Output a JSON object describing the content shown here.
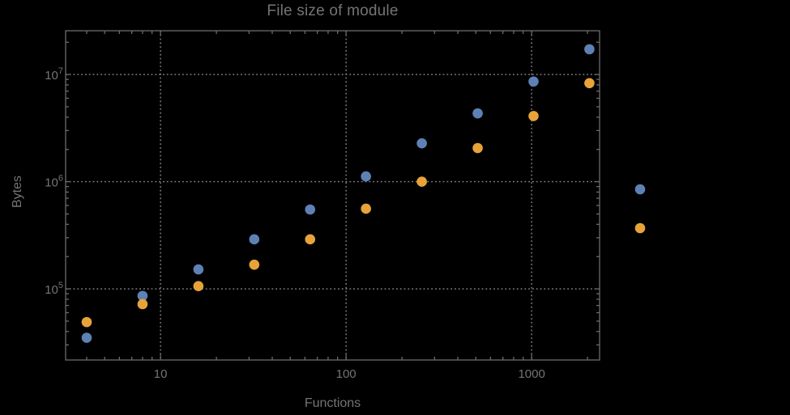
{
  "chart": {
    "title": "File size of module",
    "xlabel": "Functions",
    "ylabel": "Bytes"
  },
  "colors": {
    "background": "#000000",
    "text": "#747474",
    "frame": "#6b6b6b",
    "grid": "#8a8a8a",
    "series1": "#5e81b5",
    "series2": "#e7a33a"
  },
  "chart_data": {
    "type": "scatter",
    "title": "File size of module",
    "xlabel": "Functions",
    "ylabel": "Bytes",
    "x_scale": "log",
    "y_scale": "log",
    "grid": "dotted lines at decades",
    "xlim": [
      3.08,
      2324
    ],
    "ylim": [
      21700,
      25600000
    ],
    "x": [
      4,
      8,
      16,
      32,
      64,
      128,
      256,
      512,
      1024,
      2048
    ],
    "series": [
      {
        "name": "series-1-blue",
        "color": "#5e81b5",
        "values": [
          35000,
          86000,
          152000,
          290000,
          550000,
          1120000,
          2280000,
          4340000,
          8600000,
          17200000
        ]
      },
      {
        "name": "series-2-orange",
        "color": "#e7a33a",
        "values": [
          49000,
          72000,
          106000,
          168000,
          290000,
          560000,
          1000000,
          2060000,
          4100000,
          8300000
        ]
      }
    ],
    "x_ticks": [
      {
        "label": "10",
        "value": 10
      },
      {
        "label": "100",
        "value": 100
      },
      {
        "label": "1000",
        "value": 1000
      }
    ],
    "y_ticks": [
      {
        "base": "10",
        "exp": "5",
        "value": 100000
      },
      {
        "base": "10",
        "exp": "6",
        "value": 1000000
      },
      {
        "base": "10",
        "exp": "7",
        "value": 10000000
      }
    ],
    "legend_position": "right of plot frame, markers only (labels not visible)"
  },
  "legend": {
    "markers": [
      {
        "series": "series-1-blue",
        "color": "#5e81b5"
      },
      {
        "series": "series-2-orange",
        "color": "#e7a33a"
      }
    ]
  }
}
